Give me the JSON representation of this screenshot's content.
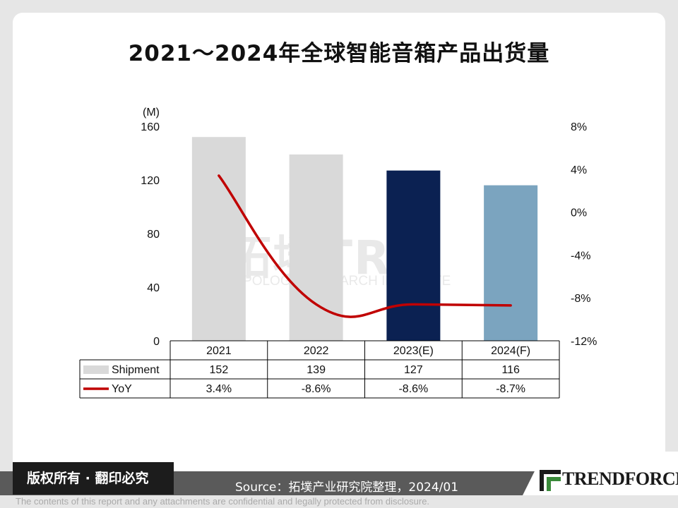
{
  "title": "2021～2024年全球智能音箱产品出货量",
  "chart_data": {
    "type": "bar",
    "categories": [
      "2021",
      "2022",
      "2023(E)",
      "2024(F)"
    ],
    "series": [
      {
        "name": "Shipment",
        "values": [
          152,
          139,
          127,
          116
        ],
        "labels": [
          "152",
          "139",
          "127",
          "116"
        ],
        "colors": [
          "#d9d9d9",
          "#d9d9d9",
          "#0b2152",
          "#7ba4bf"
        ]
      },
      {
        "name": "YoY",
        "type": "line",
        "axis": "right",
        "values": [
          3.4,
          -8.6,
          -8.6,
          -8.7
        ],
        "labels": [
          "3.4%",
          "-8.6%",
          "-8.6%",
          "-8.7%"
        ],
        "color": "#c00000"
      }
    ],
    "y_left": {
      "unit": "(M)",
      "ticks": [
        "0",
        "40",
        "80",
        "120",
        "160"
      ],
      "ylim": [
        0,
        160
      ]
    },
    "y_right": {
      "ticks": [
        "8%",
        "4%",
        "0%",
        "-4%",
        "-8%",
        "-12%"
      ],
      "ylim": [
        -12,
        8
      ]
    }
  },
  "watermark": {
    "main": "拓墣TRi",
    "sub": "TOPOLOGY RESEARCH INSTITUTE"
  },
  "footer": {
    "copyright": "版权所有 · 翻印必究",
    "source": "Source：拓墣产业研究院整理，2024/01",
    "brand": "TRENDFORCE",
    "disclaimer": "The contents of this report and any attachments are confidential and legally protected from disclosure."
  }
}
